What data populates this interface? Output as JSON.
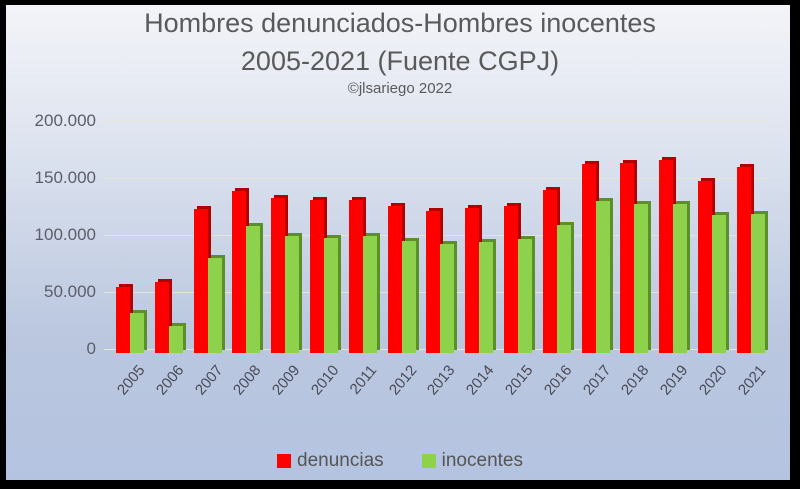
{
  "chart_data": {
    "type": "bar",
    "title": "Hombres denunciados-Hombres  inocentes",
    "subtitle": "2005-2021 (Fuente CGPJ)",
    "credit": "©jlsariego 2022",
    "xlabel": "",
    "ylabel": "",
    "ylim": [
      0,
      200000
    ],
    "yticks": [
      "0",
      "50.000",
      "100.000",
      "150.000",
      "200.000"
    ],
    "grid": true,
    "legend_position": "bottom",
    "categories": [
      "2005",
      "2006",
      "2007",
      "2008",
      "2009",
      "2010",
      "2011",
      "2012",
      "2013",
      "2014",
      "2015",
      "2016",
      "2017",
      "2018",
      "2019",
      "2020",
      "2021"
    ],
    "series": [
      {
        "name": "denuncias",
        "color": "#ff0000",
        "values": [
          58000,
          62000,
          126000,
          142000,
          136000,
          134000,
          134000,
          129000,
          125000,
          127000,
          129000,
          143000,
          166000,
          167000,
          169000,
          151000,
          163000
        ]
      },
      {
        "name": "inocentes",
        "color": "#8ed14b",
        "values": [
          35000,
          24000,
          83000,
          111000,
          103000,
          101000,
          103000,
          98000,
          96000,
          97000,
          100000,
          112000,
          133000,
          131000,
          131000,
          121000,
          122000
        ]
      }
    ]
  }
}
